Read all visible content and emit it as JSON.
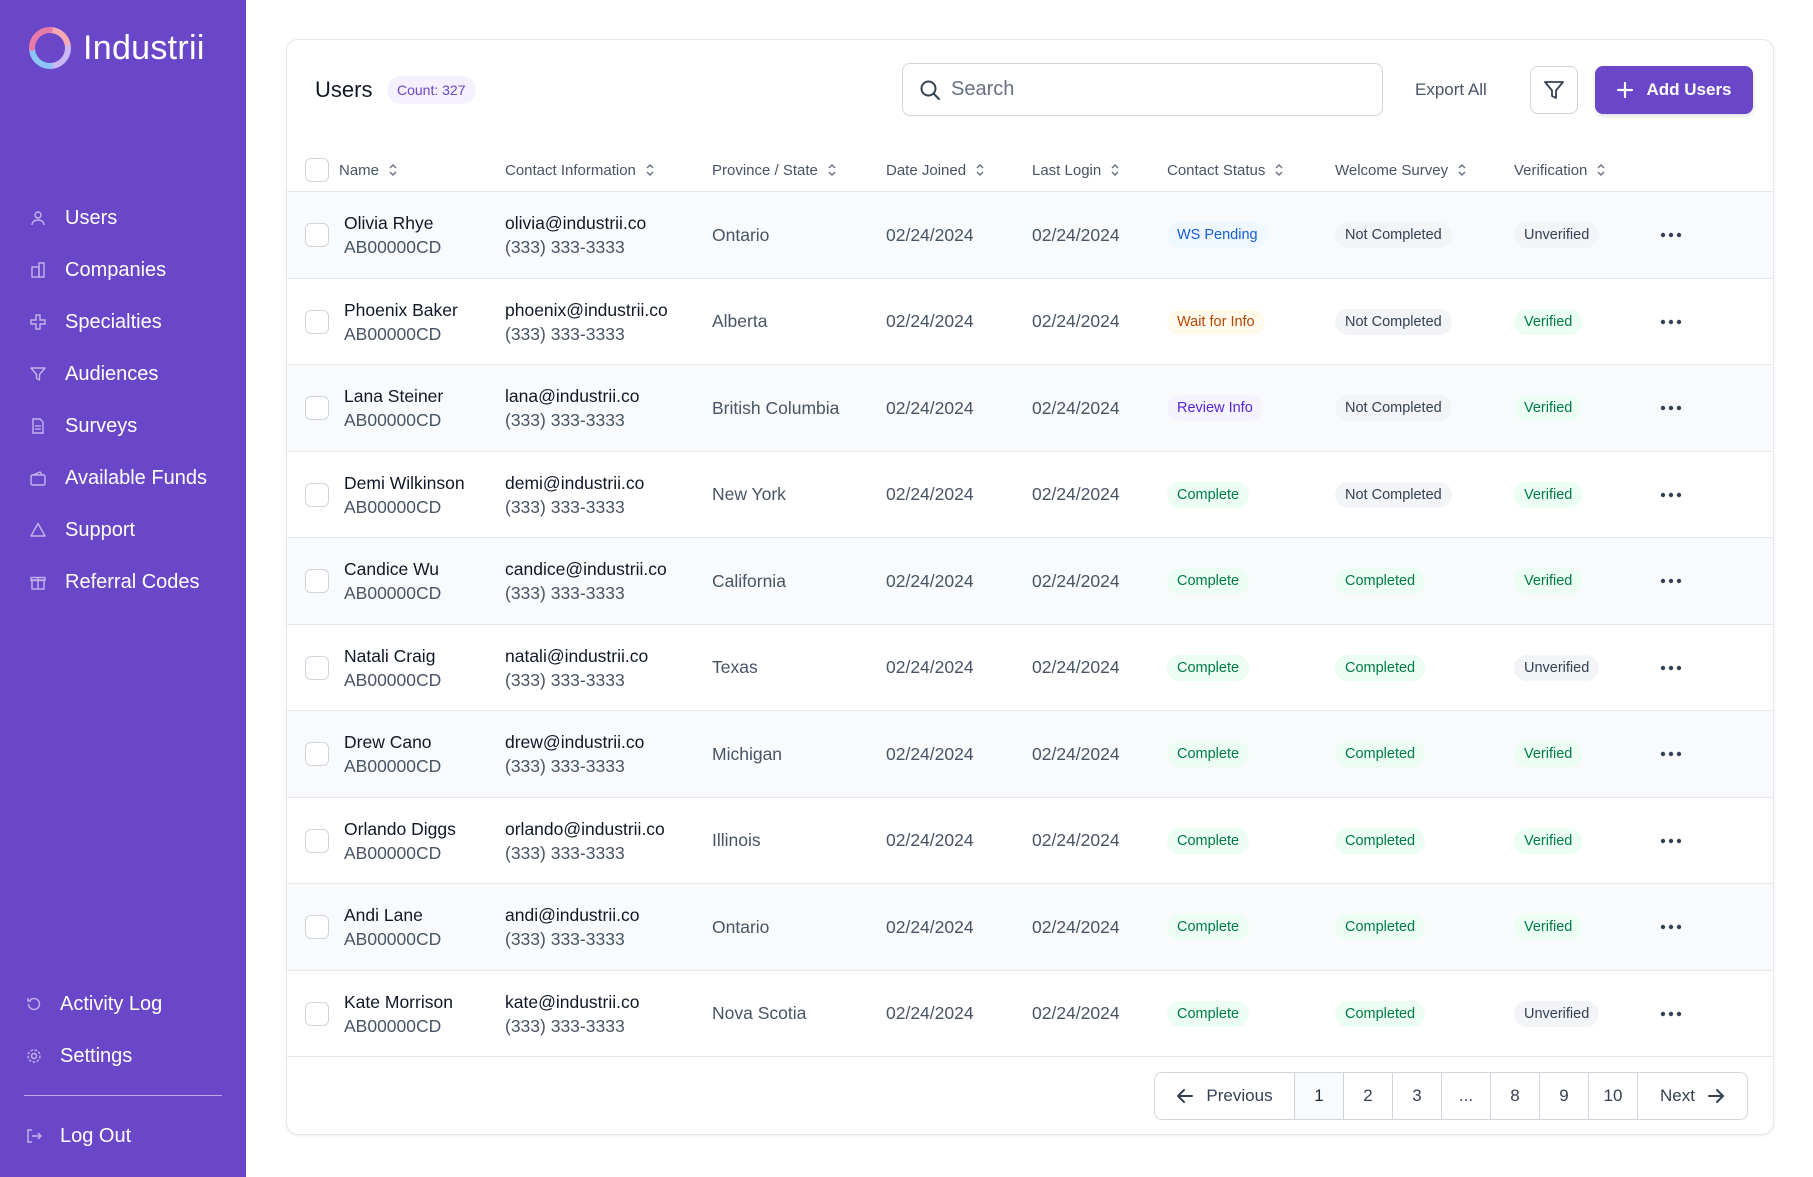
{
  "app": {
    "name": "Industrii",
    "brand_color": "#6a46c9"
  },
  "sidebar": {
    "items": [
      {
        "label": "Users",
        "icon": "user-icon"
      },
      {
        "label": "Companies",
        "icon": "building-icon"
      },
      {
        "label": "Specialties",
        "icon": "medical-cross-icon"
      },
      {
        "label": "Audiences",
        "icon": "filter-funnel-icon"
      },
      {
        "label": "Surveys",
        "icon": "document-icon"
      },
      {
        "label": "Available Funds",
        "icon": "wallet-icon"
      },
      {
        "label": "Support",
        "icon": "warning-triangle-icon"
      },
      {
        "label": "Referral Codes",
        "icon": "gift-icon"
      }
    ],
    "bottom_items": [
      {
        "label": "Activity Log",
        "icon": "history-icon"
      },
      {
        "label": "Settings",
        "icon": "gear-icon"
      }
    ],
    "logout": {
      "label": "Log Out",
      "icon": "logout-icon"
    }
  },
  "header": {
    "title": "Users",
    "count_badge": "Count: 327",
    "search_placeholder": "Search",
    "search_value": "",
    "export_label": "Export All",
    "add_label": "Add Users"
  },
  "table": {
    "columns": [
      "Name",
      "Contact Information",
      "Province / State",
      "Date Joined",
      "Last Login",
      "Contact Status",
      "Welcome Survey",
      "Verification"
    ],
    "rows": [
      {
        "name": "Olivia Rhye",
        "id": "AB00000CD",
        "email": "olivia@industrii.co",
        "phone": "(333) 333-3333",
        "province": "Ontario",
        "joined": "02/24/2024",
        "login": "02/24/2024",
        "status": "WS Pending",
        "status_color": "blue",
        "survey": "Not Completed",
        "survey_color": "gray",
        "verification": "Unverified",
        "verification_color": "gray"
      },
      {
        "name": "Phoenix Baker",
        "id": "AB00000CD",
        "email": "phoenix@industrii.co",
        "phone": "(333) 333-3333",
        "province": "Alberta",
        "joined": "02/24/2024",
        "login": "02/24/2024",
        "status": "Wait for Info",
        "status_color": "orange",
        "survey": "Not Completed",
        "survey_color": "gray",
        "verification": "Verified",
        "verification_color": "green"
      },
      {
        "name": "Lana Steiner",
        "id": "AB00000CD",
        "email": "lana@industrii.co",
        "phone": "(333) 333-3333",
        "province": "British Columbia",
        "joined": "02/24/2024",
        "login": "02/24/2024",
        "status": "Review Info",
        "status_color": "purple",
        "survey": "Not Completed",
        "survey_color": "gray",
        "verification": "Verified",
        "verification_color": "green"
      },
      {
        "name": "Demi Wilkinson",
        "id": "AB00000CD",
        "email": "demi@industrii.co",
        "phone": "(333) 333-3333",
        "province": "New York",
        "joined": "02/24/2024",
        "login": "02/24/2024",
        "status": "Complete",
        "status_color": "green",
        "survey": "Not Completed",
        "survey_color": "gray",
        "verification": "Verified",
        "verification_color": "green"
      },
      {
        "name": "Candice Wu",
        "id": "AB00000CD",
        "email": "candice@industrii.co",
        "phone": "(333) 333-3333",
        "province": "California",
        "joined": "02/24/2024",
        "login": "02/24/2024",
        "status": "Complete",
        "status_color": "green",
        "survey": "Completed",
        "survey_color": "green",
        "verification": "Verified",
        "verification_color": "green"
      },
      {
        "name": "Natali Craig",
        "id": "AB00000CD",
        "email": "natali@industrii.co",
        "phone": "(333) 333-3333",
        "province": "Texas",
        "joined": "02/24/2024",
        "login": "02/24/2024",
        "status": "Complete",
        "status_color": "green",
        "survey": "Completed",
        "survey_color": "green",
        "verification": "Unverified",
        "verification_color": "gray"
      },
      {
        "name": "Drew Cano",
        "id": "AB00000CD",
        "email": "drew@industrii.co",
        "phone": "(333) 333-3333",
        "province": "Michigan",
        "joined": "02/24/2024",
        "login": "02/24/2024",
        "status": "Complete",
        "status_color": "green",
        "survey": "Completed",
        "survey_color": "green",
        "verification": "Verified",
        "verification_color": "green"
      },
      {
        "name": "Orlando Diggs",
        "id": "AB00000CD",
        "email": "orlando@industrii.co",
        "phone": "(333) 333-3333",
        "province": "Illinois",
        "joined": "02/24/2024",
        "login": "02/24/2024",
        "status": "Complete",
        "status_color": "green",
        "survey": "Completed",
        "survey_color": "green",
        "verification": "Verified",
        "verification_color": "green"
      },
      {
        "name": "Andi Lane",
        "id": "AB00000CD",
        "email": "andi@industrii.co",
        "phone": "(333) 333-3333",
        "province": "Ontario",
        "joined": "02/24/2024",
        "login": "02/24/2024",
        "status": "Complete",
        "status_color": "green",
        "survey": "Completed",
        "survey_color": "green",
        "verification": "Verified",
        "verification_color": "green"
      },
      {
        "name": "Kate Morrison",
        "id": "AB00000CD",
        "email": "kate@industrii.co",
        "phone": "(333) 333-3333",
        "province": "Nova Scotia",
        "joined": "02/24/2024",
        "login": "02/24/2024",
        "status": "Complete",
        "status_color": "green",
        "survey": "Completed",
        "survey_color": "green",
        "verification": "Unverified",
        "verification_color": "gray"
      }
    ]
  },
  "pagination": {
    "prev_label": "Previous",
    "next_label": "Next",
    "pages": [
      "1",
      "2",
      "3",
      "...",
      "8",
      "9",
      "10"
    ],
    "current": "1"
  }
}
